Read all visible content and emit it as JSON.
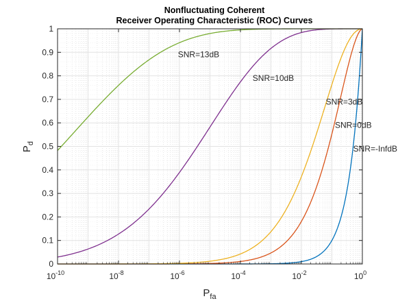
{
  "chart_data": {
    "type": "line",
    "title_lines": [
      "Nonfluctuating Coherent",
      "Receiver Operating Characteristic (ROC) Curves"
    ],
    "xscale": "log",
    "xlabel_base": "P",
    "xlabel_sub": "fa",
    "ylabel_base": "P",
    "ylabel_sub": "d",
    "xlim_exp": [
      -10,
      0
    ],
    "ylim": [
      0,
      1
    ],
    "grid": "major and minor",
    "x_ticks": [
      {
        "exp": -10,
        "base": "10",
        "sup": "-10"
      },
      {
        "exp": -8,
        "base": "10",
        "sup": "-8"
      },
      {
        "exp": -6,
        "base": "10",
        "sup": "-6"
      },
      {
        "exp": -4,
        "base": "10",
        "sup": "-4"
      },
      {
        "exp": -2,
        "base": "10",
        "sup": "-2"
      },
      {
        "exp": 0,
        "base": "10",
        "sup": "0"
      }
    ],
    "y_ticks": [
      {
        "value": 0,
        "label": "0"
      },
      {
        "value": 0.1,
        "label": "0.1"
      },
      {
        "value": 0.2,
        "label": "0.2"
      },
      {
        "value": 0.3,
        "label": "0.3"
      },
      {
        "value": 0.4,
        "label": "0.4"
      },
      {
        "value": 0.5,
        "label": "0.5"
      },
      {
        "value": 0.6,
        "label": "0.6"
      },
      {
        "value": 0.7,
        "label": "0.7"
      },
      {
        "value": 0.8,
        "label": "0.8"
      },
      {
        "value": 0.9,
        "label": "0.9"
      },
      {
        "value": 1,
        "label": "1"
      }
    ],
    "series": [
      {
        "name": "SNR=-InfdB",
        "snr_db": null,
        "color": "#0072BD"
      },
      {
        "name": "SNR=0dB",
        "snr_db": 0,
        "color": "#D95319"
      },
      {
        "name": "SNR=3dB",
        "snr_db": 3,
        "color": "#EDB120"
      },
      {
        "name": "SNR=10dB",
        "snr_db": 10,
        "color": "#7E2F8E"
      },
      {
        "name": "SNR=13dB",
        "snr_db": 13,
        "color": "#77AC30"
      }
    ],
    "annotations": [
      {
        "text": "SNR=13dB",
        "x_exp": -6.05,
        "y": 0.89
      },
      {
        "text": "SNR=10dB",
        "x_exp": -3.6,
        "y": 0.79
      },
      {
        "text": "SNR=3dB",
        "x_exp": -1.2,
        "y": 0.69
      },
      {
        "text": "SNR=0dB",
        "x_exp": -0.9,
        "y": 0.59
      },
      {
        "text": "SNR=-InfdB",
        "x_exp": -0.3,
        "y": 0.49
      }
    ]
  }
}
